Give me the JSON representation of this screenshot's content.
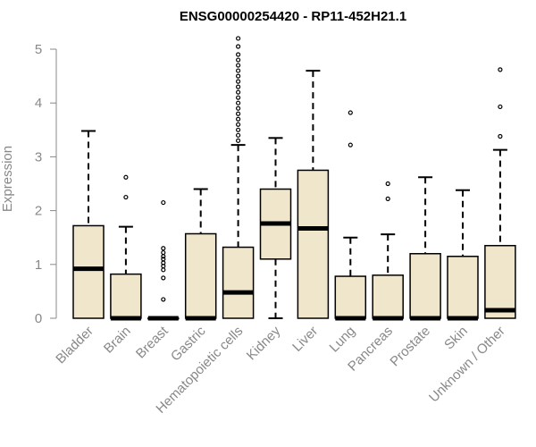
{
  "chart_data": {
    "type": "boxplot",
    "title": "ENSG00000254420 - RP11-452H21.1",
    "xlabel": "",
    "ylabel": "Expression",
    "ylim": [
      0,
      5
    ],
    "yticks": [
      0,
      1,
      2,
      3,
      4,
      5
    ],
    "box_fill": "#efe6cc",
    "categories": [
      "Bladder",
      "Brain",
      "Breast",
      "Gastric",
      "Hematopoietic cells",
      "Kidney",
      "Liver",
      "Lung",
      "Pancreas",
      "Prostate",
      "Skin",
      "Unknown / Other"
    ],
    "boxes": [
      {
        "label": "Bladder",
        "min": 0,
        "q1": 0,
        "median": 0.92,
        "q3": 1.72,
        "max": 3.48,
        "outliers": []
      },
      {
        "label": "Brain",
        "min": 0,
        "q1": 0,
        "median": 0,
        "q3": 0.82,
        "max": 1.7,
        "outliers": [
          2.25,
          2.62
        ]
      },
      {
        "label": "Breast",
        "min": 0,
        "q1": 0,
        "median": 0,
        "q3": 0,
        "max": 0,
        "outliers": [
          0.35,
          0.75,
          0.9,
          0.97,
          1.03,
          1.1,
          1.15,
          1.22,
          1.3,
          2.15
        ]
      },
      {
        "label": "Gastric",
        "min": 0,
        "q1": 0,
        "median": 0,
        "q3": 1.57,
        "max": 2.4,
        "outliers": []
      },
      {
        "label": "Hematopoietic cells",
        "min": 0,
        "q1": 0,
        "median": 0.48,
        "q3": 1.32,
        "max": 3.22,
        "outliers": [
          3.3,
          3.4,
          3.5,
          3.6,
          3.7,
          3.8,
          3.9,
          4.0,
          4.1,
          4.2,
          4.3,
          4.4,
          4.5,
          4.6,
          4.7,
          4.8,
          4.9,
          5.05,
          5.2
        ]
      },
      {
        "label": "Kidney",
        "min": 0,
        "q1": 1.1,
        "median": 1.76,
        "q3": 2.4,
        "max": 3.35,
        "outliers": []
      },
      {
        "label": "Liver",
        "min": 0,
        "q1": 0,
        "median": 1.67,
        "q3": 2.75,
        "max": 4.6,
        "outliers": []
      },
      {
        "label": "Lung",
        "min": 0,
        "q1": 0,
        "median": 0,
        "q3": 0.78,
        "max": 1.5,
        "outliers": [
          3.22,
          3.82
        ]
      },
      {
        "label": "Pancreas",
        "min": 0,
        "q1": 0,
        "median": 0,
        "q3": 0.8,
        "max": 1.56,
        "outliers": [
          2.22,
          2.5
        ]
      },
      {
        "label": "Prostate",
        "min": 0,
        "q1": 0,
        "median": 0,
        "q3": 1.2,
        "max": 2.62,
        "outliers": []
      },
      {
        "label": "Skin",
        "min": 0,
        "q1": 0,
        "median": 0,
        "q3": 1.15,
        "max": 2.38,
        "outliers": []
      },
      {
        "label": "Unknown / Other",
        "min": 0,
        "q1": 0,
        "median": 0.15,
        "q3": 1.35,
        "max": 3.13,
        "outliers": [
          3.38,
          3.93,
          4.62
        ]
      }
    ]
  }
}
